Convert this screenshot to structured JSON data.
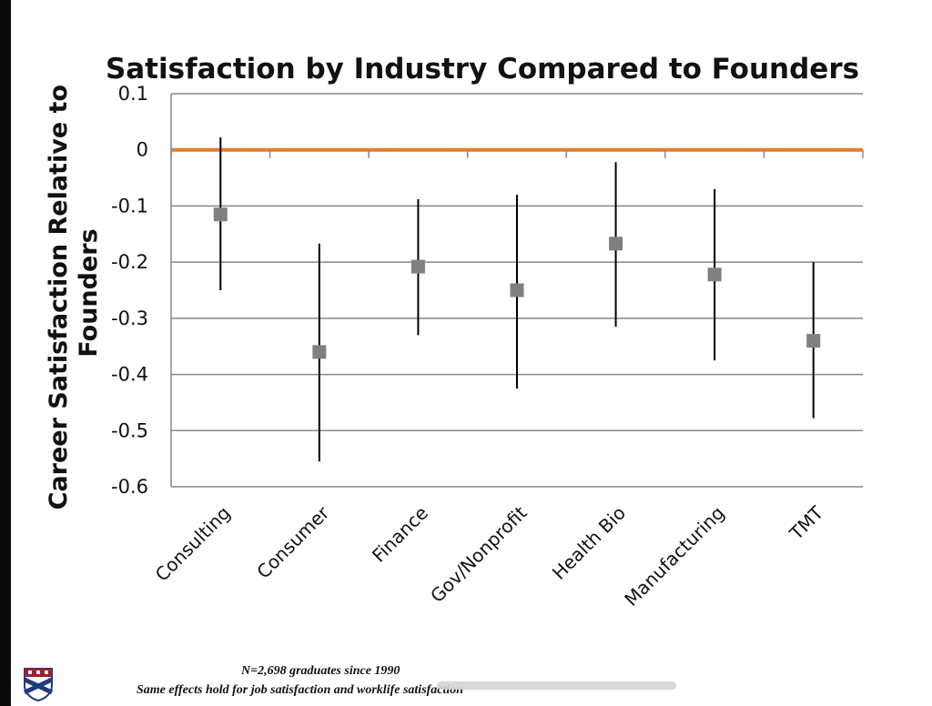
{
  "footnotes": {
    "line1": "N=2,698 graduates since 1990",
    "line2": "Same effects hold for job satisfaction and worklife satisfaction"
  },
  "colors": {
    "reference_line": "#e07f2e",
    "marker": "#808080",
    "error_bar": "#000000",
    "grid": "#888888"
  },
  "chart_data": {
    "type": "scatter",
    "title": "Satisfaction by Industry Compared to Founders",
    "xlabel": "",
    "ylabel": "Career Satisfaction Relative to Founders",
    "ylim": [
      -0.6,
      0.1
    ],
    "yticks": [
      0.1,
      0,
      -0.1,
      -0.2,
      -0.3,
      -0.4,
      -0.5,
      -0.6
    ],
    "ytick_labels": [
      "0.1",
      "0",
      "-0.1",
      "-0.2",
      "-0.3",
      "-0.4",
      "-0.5",
      "-0.6"
    ],
    "grid": true,
    "reference_line": 0,
    "categories": [
      "Consulting",
      "Consumer",
      "Finance",
      "Gov/Nonprofit",
      "Health Bio",
      "Manufacturing",
      "TMT"
    ],
    "values": [
      -0.115,
      -0.36,
      -0.208,
      -0.25,
      -0.167,
      -0.222,
      -0.34
    ],
    "error_low": [
      -0.25,
      -0.555,
      -0.33,
      -0.425,
      -0.315,
      -0.375,
      -0.478
    ],
    "error_high": [
      0.022,
      -0.167,
      -0.088,
      -0.08,
      -0.022,
      -0.07,
      -0.2
    ]
  }
}
